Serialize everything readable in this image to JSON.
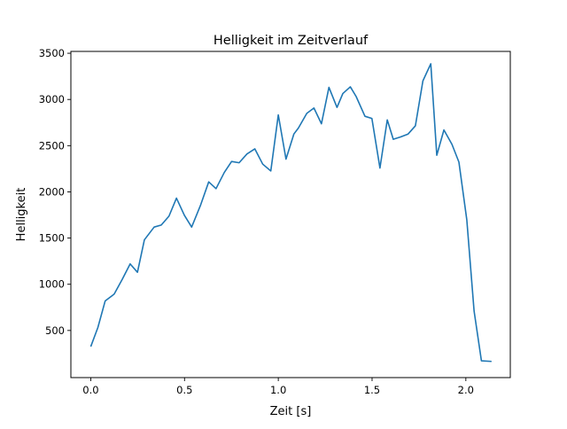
{
  "chart_data": {
    "type": "line",
    "title": "Helligkeit im Zeitverlauf",
    "xlabel": "Zeit [s]",
    "ylabel": "Helligkeit",
    "xlim": [
      -0.106,
      2.237
    ],
    "ylim": [
      -10,
      3520
    ],
    "xticks": [
      0.0,
      0.5,
      1.0,
      1.5,
      2.0
    ],
    "xtick_labels": [
      "0.0",
      "0.5",
      "1.0",
      "1.5",
      "2.0"
    ],
    "yticks": [
      500,
      1000,
      1500,
      2000,
      2500,
      3000,
      3500
    ],
    "ytick_labels": [
      "500",
      "1000",
      "1500",
      "2000",
      "2500",
      "3000",
      "3500"
    ],
    "grid": false,
    "series": [
      {
        "name": "Helligkeit",
        "color": "#1f77b4",
        "x": [
          0.0,
          0.038,
          0.077,
          0.125,
          0.168,
          0.21,
          0.249,
          0.286,
          0.338,
          0.376,
          0.417,
          0.457,
          0.499,
          0.538,
          0.586,
          0.629,
          0.668,
          0.712,
          0.751,
          0.791,
          0.833,
          0.875,
          0.917,
          0.96,
          1.0,
          1.041,
          1.083,
          1.107,
          1.152,
          1.19,
          1.23,
          1.27,
          1.313,
          1.344,
          1.384,
          1.415,
          1.462,
          1.499,
          1.542,
          1.581,
          1.613,
          1.652,
          1.692,
          1.731,
          1.771,
          1.813,
          1.845,
          1.883,
          1.926,
          1.963,
          2.005,
          2.044,
          2.083,
          2.137
        ],
        "y": [
          325,
          532,
          820,
          894,
          1054,
          1220,
          1130,
          1481,
          1619,
          1641,
          1737,
          1932,
          1747,
          1619,
          1859,
          2108,
          2035,
          2210,
          2329,
          2315,
          2410,
          2465,
          2300,
          2226,
          2833,
          2354,
          2626,
          2690,
          2850,
          2907,
          2737,
          3131,
          2914,
          3064,
          3137,
          3032,
          2818,
          2795,
          2258,
          2779,
          2569,
          2594,
          2626,
          2715,
          3201,
          3386,
          2396,
          2670,
          2514,
          2322,
          1699,
          709,
          172,
          165
        ]
      }
    ]
  }
}
